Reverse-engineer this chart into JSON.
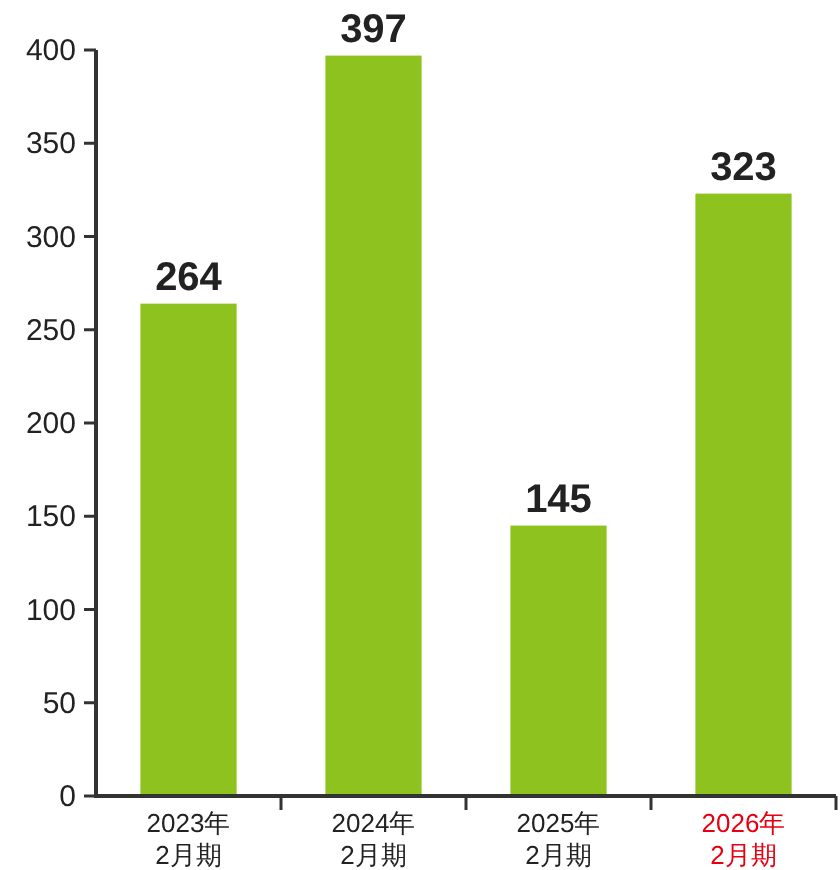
{
  "chart_data": {
    "type": "bar",
    "categories": [
      "2023年\n2月期",
      "2024年\n2月期",
      "2025年\n2月期",
      "2026年\n2月期"
    ],
    "values": [
      264,
      397,
      145,
      323
    ],
    "color": "#8dc21f",
    "ylim": [
      0,
      400
    ],
    "yticks": [
      0,
      50,
      100,
      150,
      200,
      250,
      300,
      350,
      400
    ],
    "data_labels": true,
    "grid": false
  }
}
